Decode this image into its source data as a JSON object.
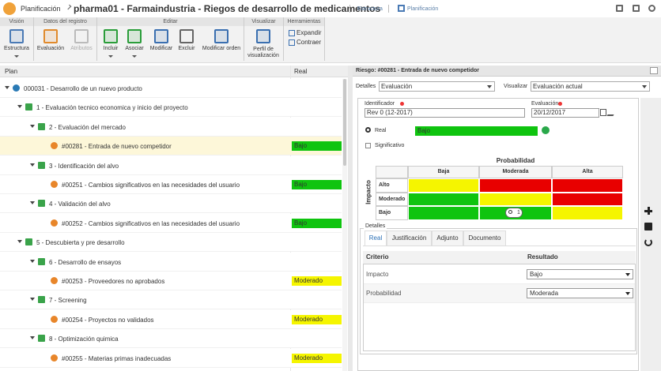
{
  "header": {
    "app": "Planificación",
    "title": "pharma01 - Farmaindustria - Riegos de desarrollo de medicamentos",
    "links": [
      "Estructura",
      "Planificación"
    ]
  },
  "ribbon": [
    {
      "label": "Visión",
      "buttons": [
        "Estructura"
      ]
    },
    {
      "label": "Datos del registro",
      "buttons": [
        "Evaluación",
        "Atributos"
      ]
    },
    {
      "label": "Editar",
      "buttons": [
        "Incluir",
        "Asociar",
        "Modificar",
        "Excluir",
        "Modificar orden"
      ]
    },
    {
      "label": "Visualizar",
      "buttons": [
        "Perfil de visualización"
      ]
    },
    {
      "label": "Herramientas",
      "buttons": [
        "Expandir",
        "Contraer"
      ]
    }
  ],
  "tree": {
    "columns": [
      "Plan",
      "Real"
    ],
    "rows": [
      {
        "label": "000031 - Desarrollo de un nuevo producto"
      },
      {
        "label": "1 - Evaluación tecnico economica y inicio del proyecto"
      },
      {
        "label": "2 - Evaluación del mercado"
      },
      {
        "label": "#00281 - Entrada de nuevo competidor",
        "real": {
          "label": "Bajo",
          "color": "#0fc40f"
        }
      },
      {
        "label": "3 - Identificación del alvo"
      },
      {
        "label": "#00251 - Cambios significativos en las necesidades del usuario",
        "real": {
          "label": "Bajo",
          "color": "#0fc40f"
        }
      },
      {
        "label": "4 - Validación del alvo"
      },
      {
        "label": "#00252 - Cambios significativos en las necesidades del usuario",
        "real": {
          "label": "Bajo",
          "color": "#0fc40f"
        }
      },
      {
        "label": "5 - Descubierta y pre desarrollo"
      },
      {
        "label": "6 - Desarrollo de ensayos"
      },
      {
        "label": "#00253 - Proveedores no aprobados",
        "real": {
          "label": "Moderado",
          "color": "#f5f500"
        }
      },
      {
        "label": "7 - Screening"
      },
      {
        "label": "#00254 - Proyectos no validados",
        "real": {
          "label": "Moderado",
          "color": "#f5f500"
        }
      },
      {
        "label": "8 - Optimización quimica"
      },
      {
        "label": "#00255 - Materias primas inadecuadas",
        "real": {
          "label": "Moderado",
          "color": "#f5f500"
        }
      }
    ]
  },
  "panel": {
    "title": "Riesgo: #00281 - Entrada de nuevo competidor",
    "filters": [
      {
        "label": "Detalles",
        "value": "Evaluación"
      },
      {
        "label": "Visualizar",
        "value": "Evaluación actual"
      }
    ],
    "fields": [
      {
        "label": "Identificador",
        "value": "Rev 0 (12-2017)"
      },
      {
        "label": "Evaluación",
        "value": "20/12/2017"
      }
    ],
    "real": {
      "label": "Real",
      "value": "Bajo",
      "color": "#0fc40f"
    },
    "checkbox": "Significativo",
    "matrix": {
      "title": "Probabilidad",
      "axis": "Impacto",
      "columns": [
        "Baja",
        "Moderada",
        "Alta"
      ],
      "rows": [
        "Alto",
        "Moderado",
        "Bajo"
      ],
      "colors": [
        [
          "#f5f500",
          "#e80000",
          "#e80000"
        ],
        [
          "#0fc40f",
          "#f5f500",
          "#e80000"
        ],
        [
          "#0fc40f",
          "#0fc40f",
          "#f5f500"
        ]
      ],
      "marker": "1"
    },
    "details": {
      "legend": "Detalles",
      "tabs": [
        "Real",
        "Justificación",
        "Adjunto",
        "Documento"
      ],
      "columns": [
        "Criterio",
        "Resultado"
      ],
      "rows": [
        [
          "Impacto",
          "Bajo"
        ],
        [
          "Probabilidad",
          "Moderada"
        ]
      ]
    }
  }
}
